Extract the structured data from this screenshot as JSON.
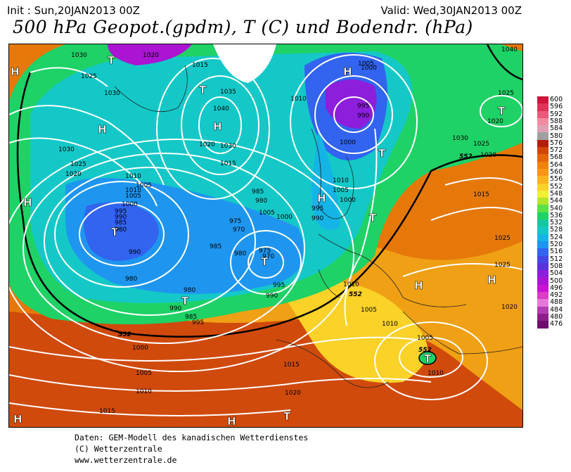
{
  "header": {
    "init": "Init : Sun,20JAN2013 00Z",
    "valid": "Valid: Wed,30JAN2013 00Z",
    "title": "500 hPa Geopot.(gpdm), T (C) und Bodendr. (hPa)"
  },
  "colorbar": {
    "values": [
      "600",
      "596",
      "592",
      "588",
      "584",
      "580",
      "576",
      "572",
      "568",
      "564",
      "560",
      "556",
      "552",
      "548",
      "544",
      "540",
      "536",
      "532",
      "528",
      "524",
      "520",
      "516",
      "512",
      "508",
      "504",
      "500",
      "496",
      "492",
      "488",
      "484",
      "480",
      "476"
    ],
    "colors": [
      "#d0143c",
      "#e0325a",
      "#ea5a7a",
      "#f08ca0",
      "#e0a0b4",
      "#a0a0a0",
      "#b41e0a",
      "#d2460a",
      "#e6640a",
      "#f0820a",
      "#fa9614",
      "#fab41e",
      "#fad228",
      "#f0f032",
      "#b4e628",
      "#5ae146",
      "#1ed266",
      "#14c8a0",
      "#14c8c8",
      "#14b4e6",
      "#1e96f0",
      "#3264f0",
      "#4646e6",
      "#5a32dc",
      "#8c1edc",
      "#aa14d2",
      "#c814d2",
      "#dc3cc8",
      "#e678dc",
      "#b43cb4",
      "#8c1e8c",
      "#6e0a6e"
    ]
  },
  "map_labels": {
    "lows": [
      "T",
      "T",
      "T",
      "T",
      "T",
      "T",
      "T",
      "T",
      "T",
      "T"
    ],
    "highs": [
      "H",
      "H",
      "H",
      "H",
      "H",
      "H",
      "H",
      "H",
      "H",
      "H"
    ],
    "isobar_values": [
      "1030",
      "1020",
      "1025",
      "1030",
      "1035",
      "1040",
      "1015",
      "1020",
      "1030",
      "1025",
      "1020",
      "1015",
      "1010",
      "1005",
      "1010",
      "1005",
      "1000",
      "995",
      "990",
      "985",
      "980",
      "975",
      "970",
      "980",
      "985",
      "980",
      "975",
      "970",
      "990",
      "1000",
      "1005",
      "1010",
      "1000",
      "995",
      "990",
      "1005",
      "1000",
      "1025",
      "1020",
      "1025",
      "1030",
      "1040",
      "1025",
      "1020",
      "1010",
      "1005",
      "1005",
      "1010",
      "1010",
      "1015",
      "1020",
      "1015",
      "1010",
      "1005",
      "1000",
      "995",
      "990",
      "985",
      "980",
      "990",
      "995",
      "1030",
      "1025",
      "1020",
      "1015",
      "1010",
      "1005",
      "1000",
      "995",
      "990",
      "985",
      "980"
    ],
    "geopot_552": [
      "552",
      "552",
      "552",
      "552"
    ]
  },
  "footer": {
    "line1": "Daten: GEM-Modell des kanadischen Wetterdienstes",
    "line2": "(C) Wetterzentrale",
    "line3": "www.wetterzentrale.de"
  }
}
